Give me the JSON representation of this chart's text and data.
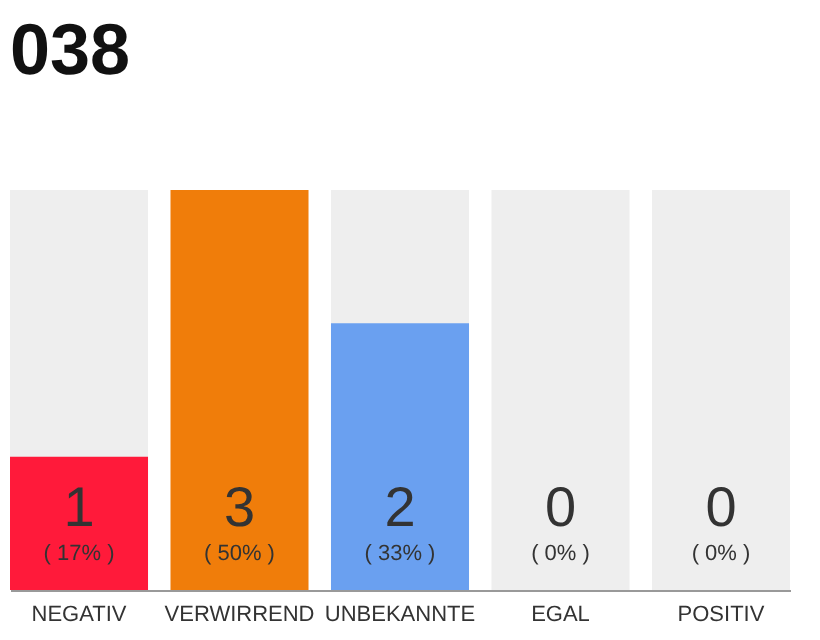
{
  "chart_data": {
    "type": "bar",
    "title": "038",
    "categories": [
      "NEGATIV",
      "VERWIRREND",
      "UNBEKANNTE",
      "EGAL",
      "POSITIV"
    ],
    "values": [
      1,
      3,
      2,
      0,
      0
    ],
    "colors": [
      "#ff1a3a",
      "#f07d0a",
      "#6aa0f0",
      "#cccccc",
      "#cccccc"
    ],
    "data_labels": true,
    "annotations": [
      "( 17% )",
      "( 50% )",
      "( 33% )",
      "( 0% )",
      "( 0% )"
    ],
    "bands": [
      {
        "axis": "x",
        "from": "NEGATIV",
        "to": "NEGATIV",
        "color": "#eeeeee"
      },
      {
        "axis": "x",
        "from": "UNBEKANNTE",
        "to": "UNBEKANNTE",
        "color": "#eeeeee"
      },
      {
        "axis": "x",
        "from": "EGAL",
        "to": "EGAL",
        "color": "#eeeeee"
      },
      {
        "axis": "x",
        "from": "POSITIV",
        "to": "POSITIV",
        "color": "#eeeeee"
      }
    ],
    "grid": false
  }
}
